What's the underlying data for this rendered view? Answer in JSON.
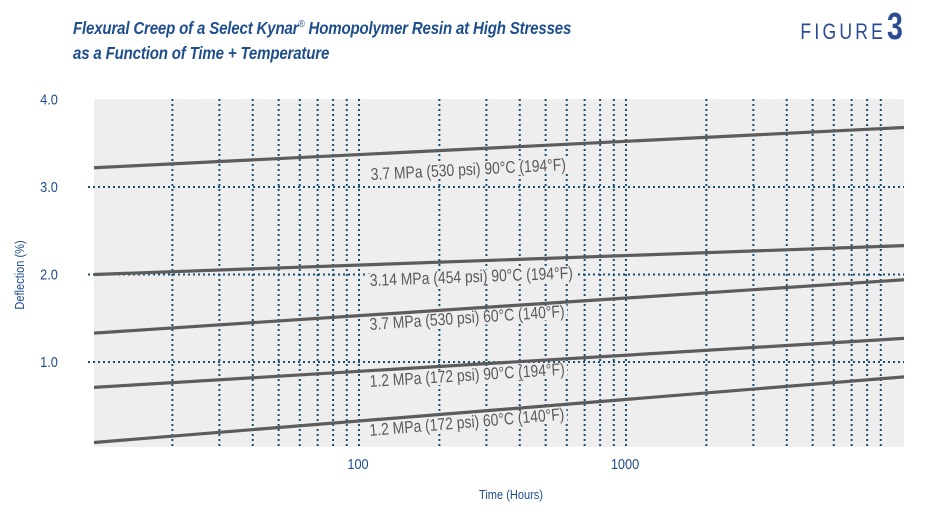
{
  "header": {
    "title_line1_prefix": "Flexural Creep of a Select Kynar",
    "title_line1_reg": "®",
    "title_line1_suffix": " Homopolymer Resin at High Stresses",
    "title_line2": "as a Function of Time + Temperature",
    "figure_word": "FIGURE",
    "figure_number": "3"
  },
  "colors": {
    "title": "#1f4e8c",
    "plot_background": "#eeeeee",
    "gridline": "#1b4f72",
    "series_line": "#5c5c5c",
    "series_label": "#5a5a5a"
  },
  "chart_data": {
    "type": "line",
    "title": "Flexural Creep of a Select Kynar® Homopolymer Resin at High Stresses as a Function of Time + Temperature",
    "xlabel": "Time (Hours)",
    "ylabel": "Deflection (%)",
    "xscale": "log",
    "xlim": [
      10,
      11000
    ],
    "ylim": [
      0.03,
      4.0
    ],
    "x_tick_labels": [
      "100",
      "1000"
    ],
    "y_tick_labels": [
      "4.0",
      "3.0",
      "2.0",
      "1.0"
    ],
    "y_ticks": [
      4.0,
      3.0,
      2.0,
      1.0
    ],
    "grid": {
      "vertical_dotted_at": [
        20,
        30,
        40,
        50,
        60,
        70,
        80,
        90,
        100,
        200,
        300,
        400,
        500,
        600,
        700,
        800,
        900,
        1000,
        2000,
        3000,
        4000,
        5000,
        6000,
        7000,
        8000,
        9000
      ],
      "horizontal_dotted_at": [
        3.0,
        2.0,
        1.0
      ]
    },
    "legend": "inline labels below each line",
    "series": [
      {
        "name": "3.7 MPa (530 psi) 90°C (194°F)",
        "x": [
          10,
          11000
        ],
        "values": [
          3.22,
          3.68
        ]
      },
      {
        "name": "3.14 MPa (454 psi) 90°C (194°F)",
        "x": [
          10,
          11000
        ],
        "values": [
          2.0,
          2.33
        ]
      },
      {
        "name": "3.7 MPa (530 psi) 60°C (140°F)",
        "x": [
          10,
          11000
        ],
        "values": [
          1.33,
          1.94
        ]
      },
      {
        "name": "1.2 MPa (172 psi) 90°C (194°F)",
        "x": [
          10,
          11000
        ],
        "values": [
          0.71,
          1.27
        ]
      },
      {
        "name": "1.2 MPa (172 psi) 60°C (140°F)",
        "x": [
          10,
          11000
        ],
        "values": [
          0.08,
          0.83
        ]
      }
    ]
  }
}
